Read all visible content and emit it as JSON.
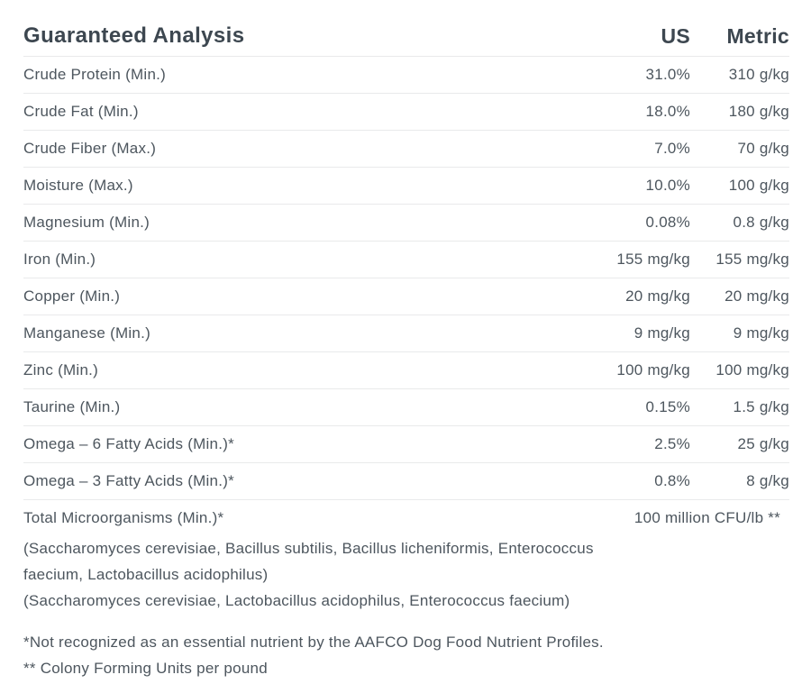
{
  "header": {
    "title": "Guaranteed Analysis",
    "us_label": "US",
    "metric_label": "Metric"
  },
  "rows": [
    {
      "label": "Crude Protein (Min.)",
      "us": "31.0%",
      "metric": "310 g/kg"
    },
    {
      "label": "Crude Fat (Min.)",
      "us": "18.0%",
      "metric": "180 g/kg"
    },
    {
      "label": "Crude Fiber (Max.)",
      "us": "7.0%",
      "metric": "70 g/kg"
    },
    {
      "label": "Moisture (Max.)",
      "us": "10.0%",
      "metric": "100 g/kg"
    },
    {
      "label": "Magnesium (Min.)",
      "us": "0.08%",
      "metric": "0.8 g/kg"
    },
    {
      "label": "Iron (Min.)",
      "us": "155 mg/kg",
      "metric": "155 mg/kg"
    },
    {
      "label": "Copper (Min.)",
      "us": "20 mg/kg",
      "metric": "20 mg/kg"
    },
    {
      "label": "Manganese (Min.)",
      "us": "9 mg/kg",
      "metric": "9 mg/kg"
    },
    {
      "label": "Zinc (Min.)",
      "us": "100 mg/kg",
      "metric": "100 mg/kg"
    },
    {
      "label": "Taurine (Min.)",
      "us": "0.15%",
      "metric": "1.5 g/kg"
    },
    {
      "label": "Omega – 6 Fatty Acids (Min.)*",
      "us": "2.5%",
      "metric": "25 g/kg"
    },
    {
      "label": "Omega – 3 Fatty Acids (Min.)*",
      "us": "0.8%",
      "metric": "8 g/kg"
    }
  ],
  "microorganisms": {
    "row_label": "Total Microorganisms (Min.)*",
    "row_value": "100 million CFU/lb **",
    "lines": [
      "(Saccharomyces cerevisiae, Bacillus subtilis, Bacillus licheniformis, Enterococcus",
      "faecium, Lactobacillus acidophilus)",
      "(Saccharomyces cerevisiae, Lactobacillus acidophilus, Enterococcus faecium)"
    ]
  },
  "footnotes": [
    "*Not recognized as an essential nutrient by the AAFCO Dog Food Nutrient Profiles.",
    "** Colony Forming Units per pound"
  ],
  "colors": {
    "title_text": "#3d4750",
    "body_text": "#4d565e",
    "divider": "#e9eaeb",
    "background": "#ffffff"
  }
}
